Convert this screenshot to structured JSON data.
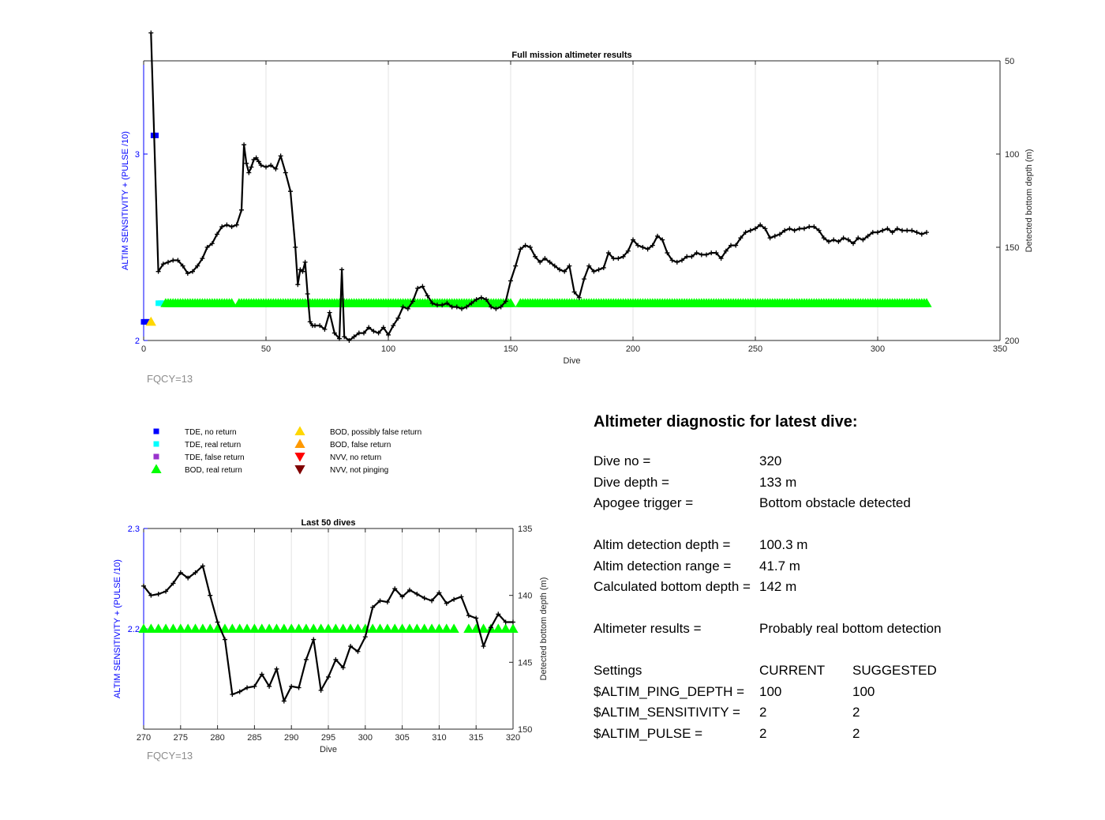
{
  "chart_data": [
    {
      "type": "line",
      "title": "Full mission altimeter results",
      "xlabel": "Dive",
      "ylabel_left": "ALTIM SENSITIVITY + (PULSE /10)",
      "ylabel_right": "Detected bottom depth (m)",
      "xlim": [
        0,
        350
      ],
      "xticks": [
        0,
        50,
        100,
        150,
        200,
        250,
        300,
        350
      ],
      "ylim_left": [
        2,
        3.5
      ],
      "yticks_left": [
        2,
        3
      ],
      "ylim_right": [
        200,
        50
      ],
      "yticks_right": [
        50,
        100,
        150,
        200
      ],
      "right_axis_reversed": true,
      "grid": "x",
      "annotation": "FQCY=13",
      "bottom_depth_series": {
        "color": "#000000",
        "x": [
          3,
          6,
          8,
          10,
          12,
          14,
          16,
          18,
          20,
          22,
          24,
          26,
          28,
          30,
          32,
          34,
          36,
          38,
          40,
          41,
          42,
          43,
          44,
          45,
          46,
          47,
          48,
          50,
          52,
          54,
          56,
          58,
          60,
          62,
          63,
          64,
          65,
          66,
          67,
          68,
          69,
          70,
          72,
          74,
          76,
          78,
          80,
          81,
          82,
          84,
          86,
          88,
          90,
          92,
          94,
          96,
          98,
          100,
          102,
          104,
          106,
          108,
          110,
          112,
          114,
          116,
          118,
          120,
          122,
          124,
          126,
          128,
          130,
          132,
          134,
          136,
          138,
          140,
          142,
          144,
          146,
          148,
          150,
          152,
          154,
          156,
          158,
          160,
          162,
          164,
          166,
          168,
          170,
          172,
          174,
          176,
          178,
          180,
          182,
          184,
          186,
          188,
          190,
          192,
          194,
          196,
          198,
          200,
          202,
          204,
          206,
          208,
          210,
          212,
          214,
          216,
          218,
          220,
          222,
          224,
          226,
          228,
          230,
          232,
          234,
          236,
          238,
          240,
          242,
          244,
          246,
          248,
          250,
          252,
          254,
          256,
          258,
          260,
          262,
          264,
          266,
          268,
          270,
          272,
          274,
          276,
          278,
          280,
          282,
          284,
          286,
          288,
          290,
          292,
          294,
          296,
          298,
          300,
          302,
          304,
          306,
          308,
          310,
          312,
          314,
          316,
          318,
          320
        ],
        "y": [
          35,
          163,
          159,
          158,
          157,
          157,
          160,
          164,
          163,
          160,
          156,
          150,
          148,
          143,
          139,
          138,
          139,
          138,
          130,
          95,
          105,
          110,
          107,
          103,
          102,
          104,
          106,
          107,
          106,
          108,
          101,
          110,
          120,
          150,
          170,
          162,
          163,
          158,
          175,
          190,
          192,
          192,
          192,
          194,
          185,
          196,
          199,
          162,
          198,
          200,
          198,
          196,
          196,
          193,
          195,
          196,
          193,
          197,
          192,
          188,
          182,
          183,
          179,
          172,
          171,
          176,
          180,
          181,
          181,
          180,
          182,
          182,
          183,
          182,
          180,
          178,
          177,
          178,
          182,
          183,
          182,
          179,
          168,
          160,
          151,
          149,
          150,
          155,
          158,
          156,
          158,
          160,
          162,
          163,
          160,
          174,
          177,
          167,
          160,
          163,
          162,
          161,
          153,
          156,
          156,
          155,
          152,
          146,
          149,
          150,
          151,
          149,
          144,
          146,
          153,
          157,
          158,
          157,
          155,
          155,
          153,
          154,
          154,
          153,
          153,
          156,
          152,
          149,
          149,
          145,
          142,
          141,
          140,
          138,
          140,
          145,
          144,
          143,
          141,
          140,
          141,
          140,
          140,
          139,
          139,
          141,
          145,
          147,
          146,
          147,
          145,
          146,
          148,
          145,
          146,
          144,
          142,
          142,
          141,
          140,
          142,
          140,
          141,
          141,
          141,
          142,
          143,
          142
        ]
      },
      "status_markers": [
        {
          "label": "TDE, no return",
          "color": "#0000ff",
          "shape": "square",
          "x": [
            0,
            1,
            2,
            4,
            5
          ],
          "y": [
            2.1,
            2.1,
            2.1,
            3.1,
            3.1
          ]
        },
        {
          "label": "TDE, real return",
          "color": "#00ffff",
          "shape": "square",
          "x": [
            6,
            7,
            8
          ],
          "y": [
            2.2,
            2.2,
            2.2
          ]
        },
        {
          "label": "BOD, possibly false return",
          "color": "#ffd700",
          "shape": "triangle-up",
          "x": [
            3
          ],
          "y": [
            2.1
          ]
        },
        {
          "label": "BOD, real return",
          "color": "#00ff00",
          "shape": "triangle-up",
          "y_value": 2.2,
          "ranges": [
            [
              9,
              36
            ],
            [
              39,
              150
            ],
            [
              154,
              320
            ]
          ]
        }
      ]
    },
    {
      "type": "line",
      "title": "Last 50 dives",
      "xlabel": "Dive",
      "ylabel_left": "ALTIM SENSITIVITY + (PULSE /10)",
      "ylabel_right": "Detected bottom depth (m)",
      "xlim": [
        270,
        320
      ],
      "xticks": [
        270,
        275,
        280,
        285,
        290,
        295,
        300,
        305,
        310,
        315,
        320
      ],
      "ylim_left": [
        2.1,
        2.3
      ],
      "yticks_left": [
        2.2,
        2.3
      ],
      "ylim_right": [
        150,
        135
      ],
      "yticks_right": [
        135,
        140,
        145,
        150
      ],
      "right_axis_reversed": true,
      "grid": "x",
      "annotation": "FQCY=13",
      "bottom_depth_series": {
        "color": "#000000",
        "x": [
          270,
          271,
          272,
          273,
          274,
          275,
          276,
          277,
          278,
          279,
          280,
          281,
          282,
          283,
          284,
          285,
          286,
          287,
          288,
          289,
          290,
          291,
          292,
          293,
          294,
          295,
          296,
          297,
          298,
          299,
          300,
          301,
          302,
          303,
          304,
          305,
          306,
          307,
          308,
          309,
          310,
          311,
          312,
          313,
          314,
          315,
          316,
          317,
          318,
          319,
          320
        ],
        "y": [
          139.3,
          140.0,
          139.9,
          139.7,
          139.1,
          138.3,
          138.7,
          138.3,
          137.8,
          140.0,
          142.0,
          143.3,
          147.4,
          147.2,
          146.9,
          146.8,
          145.9,
          146.8,
          145.5,
          147.9,
          146.8,
          146.9,
          144.8,
          143.3,
          147.1,
          146.1,
          144.8,
          145.4,
          143.8,
          144.2,
          143.1,
          140.9,
          140.4,
          140.5,
          139.5,
          140.1,
          139.6,
          139.9,
          140.2,
          140.4,
          139.8,
          140.6,
          140.3,
          140.1,
          141.5,
          141.7,
          143.8,
          142.4,
          141.4,
          142.0,
          142.0
        ]
      },
      "status_markers": [
        {
          "label": "BOD, real return",
          "color": "#00ff00",
          "shape": "triangle-up",
          "y_value": 2.2,
          "ranges": [
            [
              270,
              312
            ],
            [
              314,
              320
            ]
          ]
        }
      ]
    }
  ],
  "legend": {
    "left": [
      {
        "label": "TDE, no return",
        "color": "#0000ff",
        "shape": "square"
      },
      {
        "label": "TDE, real return",
        "color": "#00ffff",
        "shape": "square"
      },
      {
        "label": "TDE, false return",
        "color": "#9933cc",
        "shape": "square"
      },
      {
        "label": "BOD, real return",
        "color": "#00ff00",
        "shape": "triangle-up"
      }
    ],
    "right": [
      {
        "label": "BOD, possibly false return",
        "color": "#ffd700",
        "shape": "triangle-up"
      },
      {
        "label": "BOD, false return",
        "color": "#ff9900",
        "shape": "triangle-up"
      },
      {
        "label": "NVV, no return",
        "color": "#ff0000",
        "shape": "triangle-down"
      },
      {
        "label": "NVV, not pinging",
        "color": "#800000",
        "shape": "triangle-down"
      }
    ]
  },
  "diagnostic": {
    "title": "Altimeter diagnostic for latest dive:",
    "dive_no_label": "Dive no =",
    "dive_no_value": "320",
    "dive_depth_label": "Dive depth =",
    "dive_depth_value": "133 m",
    "apogee_label": "Apogee trigger =",
    "apogee_value": "Bottom obstacle detected",
    "detection_depth_label": "Altim detection depth =",
    "detection_depth_value": "100.3 m",
    "detection_range_label": "Altim detection range =",
    "detection_range_value": "41.7 m",
    "bottom_depth_label": "Calculated bottom depth =",
    "bottom_depth_value": "142 m",
    "results_label": "Altimeter results =",
    "results_value": "Probably real bottom detection",
    "settings_header": "Settings",
    "current_header": "CURRENT",
    "suggested_header": "SUGGESTED",
    "settings": [
      {
        "name": "$ALTIM_PING_DEPTH =",
        "current": "100",
        "suggested": "100"
      },
      {
        "name": "$ALTIM_SENSITIVITY =",
        "current": "2",
        "suggested": "2"
      },
      {
        "name": "$ALTIM_PULSE =",
        "current": "2",
        "suggested": "2"
      }
    ]
  }
}
